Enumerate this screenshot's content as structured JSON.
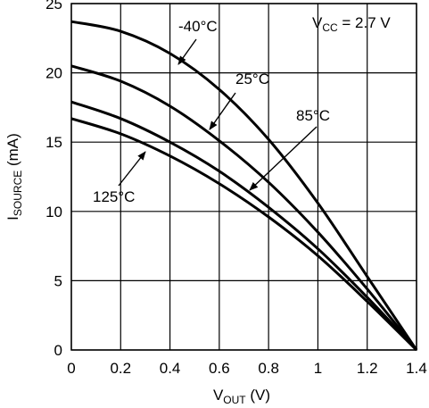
{
  "chart_data": {
    "type": "line",
    "title": "",
    "xlabel": {
      "main": "V",
      "sub": "OUT",
      "suffix": " (V)"
    },
    "ylabel": {
      "main": "I",
      "sub": "SOURCE",
      "suffix": " (mA)"
    },
    "xlim": [
      0,
      1.4
    ],
    "ylim": [
      0,
      25
    ],
    "x_ticks": [
      0,
      0.2,
      0.4,
      0.6,
      0.8,
      1.0,
      1.2,
      1.4
    ],
    "x_tick_labels": [
      "0",
      "0.2",
      "0.4",
      "0.6",
      "0.8",
      "1",
      "1.2",
      "1.4"
    ],
    "y_ticks": [
      0,
      5,
      10,
      15,
      20,
      25
    ],
    "y_tick_labels": [
      "0",
      "5",
      "10",
      "15",
      "20",
      "25"
    ],
    "grid": true,
    "condition": {
      "main": "V",
      "sub": "CC",
      "suffix": " = 2.7 V"
    },
    "series": [
      {
        "name": "-40°C",
        "x": [
          0,
          0.2,
          0.4,
          0.6,
          0.8,
          1.0,
          1.2,
          1.4
        ],
        "y": [
          23.7,
          23.0,
          21.4,
          18.8,
          15.2,
          10.6,
          5.3,
          0
        ]
      },
      {
        "name": "25°C",
        "x": [
          0,
          0.2,
          0.4,
          0.6,
          0.8,
          1.0,
          1.2,
          1.4
        ],
        "y": [
          20.5,
          19.4,
          17.6,
          15.1,
          12.1,
          8.5,
          4.4,
          0
        ]
      },
      {
        "name": "85°C",
        "x": [
          0,
          0.2,
          0.4,
          0.6,
          0.8,
          1.0,
          1.2,
          1.4
        ],
        "y": [
          17.9,
          16.7,
          15.0,
          12.9,
          10.3,
          7.3,
          3.8,
          0
        ]
      },
      {
        "name": "125°C",
        "x": [
          0,
          0.2,
          0.4,
          0.6,
          0.8,
          1.0,
          1.2,
          1.4
        ],
        "y": [
          16.7,
          15.6,
          14.0,
          12.0,
          9.6,
          6.8,
          3.5,
          0
        ]
      }
    ]
  }
}
